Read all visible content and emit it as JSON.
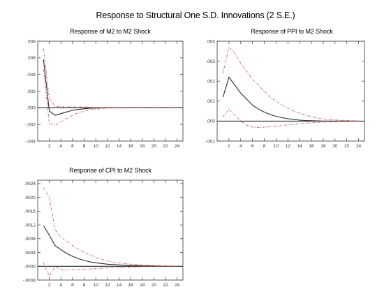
{
  "figure_title": "Response to Structural One S.D. Innovations (2 S.E.)",
  "colors": {
    "response": "#2a2a2a",
    "bands": "#c0504d",
    "zero": "#222222"
  },
  "chart_data": [
    {
      "type": "line",
      "title": "Response of M2 to M2 Shock",
      "x": [
        1,
        2,
        3,
        4,
        5,
        6,
        7,
        8,
        9,
        10,
        11,
        12,
        13,
        14,
        15,
        16,
        17,
        18,
        19,
        20,
        21,
        22,
        23,
        24
      ],
      "xticks": [
        2,
        4,
        6,
        8,
        10,
        12,
        14,
        16,
        18,
        20,
        22,
        24
      ],
      "yticks": [
        -0.004,
        -0.002,
        0.0,
        0.002,
        0.004,
        0.006,
        0.008
      ],
      "ytick_labels": [
        "-.004",
        "-.002",
        ".000",
        ".002",
        ".004",
        ".006",
        ".008"
      ],
      "ylim": [
        -0.004,
        0.008
      ],
      "series": [
        {
          "role": "response",
          "values": [
            0.0058,
            -0.0004,
            -0.0009,
            -0.0007,
            -0.0005,
            -0.0003,
            -0.0002,
            -0.00012,
            -6e-05,
            -3e-05,
            -1e-05,
            0,
            0,
            0,
            0,
            0,
            0,
            0,
            0,
            0,
            0,
            0,
            0,
            0
          ]
        },
        {
          "role": "upper",
          "values": [
            0.0071,
            0.0011,
            0.0002,
            0.0001,
            0.0001,
            0.0001,
            0.0001,
            0.0001,
            5e-05,
            3e-05,
            2e-05,
            1e-05,
            0,
            0,
            0,
            0,
            0,
            0,
            0,
            0,
            0,
            0,
            0,
            0
          ]
        },
        {
          "role": "lower",
          "values": [
            0.0046,
            -0.0019,
            -0.0021,
            -0.0017,
            -0.0013,
            -0.0009,
            -0.0006,
            -0.0004,
            -0.00025,
            -0.00015,
            -8e-05,
            -4e-05,
            -2e-05,
            -1e-05,
            0,
            0,
            0,
            0,
            0,
            0,
            0,
            0,
            0,
            0
          ]
        }
      ]
    },
    {
      "type": "line",
      "title": "Response of PPI to M2 Shock",
      "x": [
        1,
        2,
        3,
        4,
        5,
        6,
        7,
        8,
        9,
        10,
        11,
        12,
        13,
        14,
        15,
        16,
        17,
        18,
        19,
        20,
        21,
        22,
        23,
        24
      ],
      "xticks": [
        2,
        4,
        6,
        8,
        10,
        12,
        14,
        16,
        18,
        20,
        22,
        24
      ],
      "yticks": [
        -0.001,
        0.0,
        0.001,
        0.002,
        0.003,
        0.004
      ],
      "ytick_labels": [
        "-.001",
        ".000",
        ".001",
        ".002",
        ".003",
        ".004"
      ],
      "ylim": [
        -0.001,
        0.004
      ],
      "series": [
        {
          "role": "response",
          "values": [
            0.0012,
            0.0022,
            0.0018,
            0.0014,
            0.0011,
            0.0008,
            0.0006,
            0.00045,
            0.00033,
            0.00024,
            0.00017,
            0.00012,
            8e-05,
            5e-05,
            3e-05,
            2e-05,
            1e-05,
            0,
            0,
            0,
            0,
            0,
            0,
            0
          ]
        },
        {
          "role": "upper",
          "values": [
            0.0024,
            0.0037,
            0.0034,
            0.0029,
            0.0025,
            0.0021,
            0.0018,
            0.0015,
            0.0012,
            0.001,
            0.0008,
            0.00065,
            0.0005,
            0.0004,
            0.0003,
            0.00022,
            0.00016,
            0.00011,
            8e-05,
            6e-05,
            4e-05,
            3e-05,
            2e-05,
            1e-05
          ]
        },
        {
          "role": "lower",
          "values": [
            0.0002,
            0.0006,
            0.0003,
            0.0,
            -0.0002,
            -0.0003,
            -0.00032,
            -0.0003,
            -0.00028,
            -0.00025,
            -0.00022,
            -0.00019,
            -0.00016,
            -0.00013,
            -0.0001,
            -8e-05,
            -6e-05,
            -5e-05,
            -4e-05,
            -3e-05,
            -2e-05,
            -2e-05,
            -1e-05,
            -1e-05
          ]
        }
      ]
    },
    {
      "type": "line",
      "title": "Response of CPI to M2 Shock",
      "x": [
        1,
        2,
        3,
        4,
        5,
        6,
        7,
        8,
        9,
        10,
        11,
        12,
        13,
        14,
        15,
        16,
        17,
        18,
        19,
        20,
        21,
        22,
        23,
        24
      ],
      "xticks": [
        2,
        4,
        6,
        8,
        10,
        12,
        14,
        16,
        18,
        20,
        22,
        24
      ],
      "yticks": [
        -0.0004,
        0.0,
        0.0004,
        0.0008,
        0.0012,
        0.0016,
        0.002,
        0.0024
      ],
      "ytick_labels": [
        "-.0004",
        ".0000",
        ".0004",
        ".0008",
        ".0012",
        ".0016",
        ".0020",
        ".0024"
      ],
      "ylim": [
        -0.0004,
        0.0025
      ],
      "series": [
        {
          "role": "response",
          "values": [
            0.00118,
            0.0009,
            0.0006,
            0.00048,
            0.00037,
            0.00029,
            0.00022,
            0.00017,
            0.00013,
            0.0001,
            8e-05,
            6e-05,
            5e-05,
            4e-05,
            3e-05,
            2e-05,
            2e-05,
            1e-05,
            1e-05,
            1e-05,
            0,
            0,
            0,
            0
          ]
        },
        {
          "role": "upper",
          "values": [
            0.00228,
            0.002,
            0.00105,
            0.00085,
            0.00072,
            0.0006,
            0.0005,
            0.0004,
            0.00033,
            0.00026,
            0.0002,
            0.00016,
            0.00012,
            0.0001,
            8e-05,
            6e-05,
            5e-05,
            4e-05,
            3e-05,
            2e-05,
            2e-05,
            1e-05,
            1e-05,
            0
          ]
        },
        {
          "role": "lower",
          "values": [
            0.0001,
            -0.0003,
            0.0,
            -0.0001,
            -0.00011,
            -0.0001,
            -0.0001,
            -9e-05,
            -8e-05,
            -7e-05,
            -6e-05,
            -5e-05,
            -4e-05,
            -3e-05,
            -3e-05,
            -2e-05,
            -2e-05,
            -1e-05,
            -1e-05,
            -1e-05,
            0,
            0,
            0,
            0
          ]
        }
      ]
    }
  ]
}
